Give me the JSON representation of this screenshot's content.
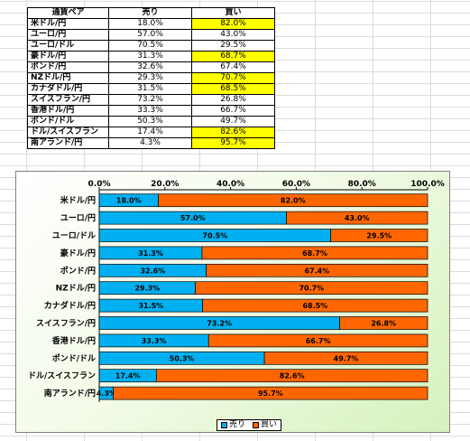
{
  "table": {
    "headers": [
      "通貨ペア",
      "売り",
      "買い"
    ],
    "rows": [
      {
        "pair": "米ドル/円",
        "sell": "18.0%",
        "buy": "82.0%",
        "highlight": true
      },
      {
        "pair": "ユーロ/円",
        "sell": "57.0%",
        "buy": "43.0%",
        "highlight": false
      },
      {
        "pair": "ユーロ/ドル",
        "sell": "70.5%",
        "buy": "29.5%",
        "highlight": false
      },
      {
        "pair": "豪ドル/円",
        "sell": "31.3%",
        "buy": "68.7%",
        "highlight": true
      },
      {
        "pair": "ポンド/円",
        "sell": "32.6%",
        "buy": "67.4%",
        "highlight": false
      },
      {
        "pair": "NZドル/円",
        "sell": "29.3%",
        "buy": "70.7%",
        "highlight": true
      },
      {
        "pair": "カナダドル/円",
        "sell": "31.5%",
        "buy": "68.5%",
        "highlight": true
      },
      {
        "pair": "スイスフラン/円",
        "sell": "73.2%",
        "buy": "26.8%",
        "highlight": false
      },
      {
        "pair": "香港ドル/円",
        "sell": "33.3%",
        "buy": "66.7%",
        "highlight": false
      },
      {
        "pair": "ポンド/ドル",
        "sell": "50.3%",
        "buy": "49.7%",
        "highlight": false
      },
      {
        "pair": "ドル/スイスフラン",
        "sell": "17.4%",
        "buy": "82.6%",
        "highlight": true
      },
      {
        "pair": "南アランド/円",
        "sell": "4.3%",
        "buy": "95.7%",
        "highlight": true
      }
    ],
    "highlight_color": "#ffff00"
  },
  "chart_data": {
    "type": "bar",
    "orientation": "horizontal",
    "stacked": "percent",
    "categories": [
      "米ドル/円",
      "ユーロ/円",
      "ユーロ/ドル",
      "豪ドル/円",
      "ポンド/円",
      "NZドル/円",
      "カナダドル/円",
      "スイスフラン/円",
      "香港ドル/円",
      "ポンド/ドル",
      "ドル/スイスフラン",
      "南アランド/円"
    ],
    "series": [
      {
        "name": "売り",
        "values": [
          18.0,
          57.0,
          70.5,
          31.3,
          32.6,
          29.3,
          31.5,
          73.2,
          33.3,
          50.3,
          17.4,
          4.3
        ],
        "color": "#00b0f0"
      },
      {
        "name": "買い",
        "values": [
          82.0,
          43.0,
          29.5,
          68.7,
          67.4,
          70.7,
          68.5,
          26.8,
          66.7,
          49.7,
          82.6,
          95.7
        ],
        "color": "#ff6600"
      }
    ],
    "xlim": [
      0,
      100
    ],
    "xticks": [
      "0.0%",
      "20.0%",
      "40.0%",
      "60.0%",
      "80.0%",
      "100.0%"
    ],
    "legend_position": "bottom",
    "grid": false
  }
}
